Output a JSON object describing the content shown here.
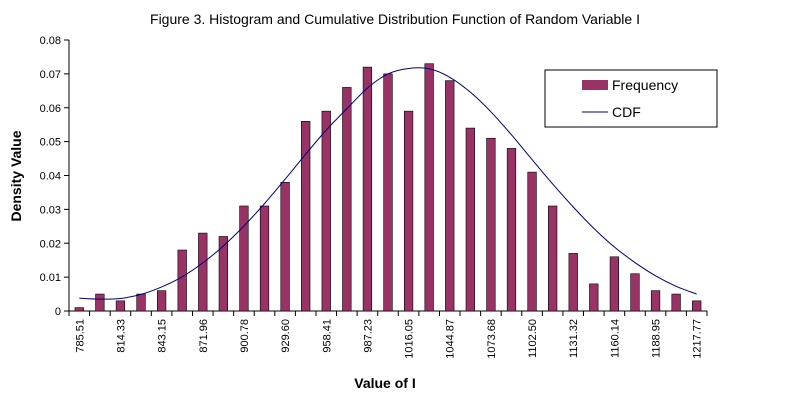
{
  "chart_data": {
    "type": "bar",
    "title": "Figure 3.  Histogram and Cumulative Distribution Function of Random Variable I",
    "xlabel": "Value of I",
    "ylabel": "Density Value",
    "ylim": [
      0,
      0.08
    ],
    "y_ticks": [
      "0",
      "0.01",
      "0.02",
      "0.03",
      "0.04",
      "0.05",
      "0.06",
      "0.07",
      "0.08"
    ],
    "x_tick_labels": [
      "785.51",
      "814.33",
      "843.15",
      "871.96",
      "900.78",
      "929.60",
      "958.41",
      "987.23",
      "1016.05",
      "1044.87",
      "1073.68",
      "1102.50",
      "1131.32",
      "1160.14",
      "1188.95",
      "1217.77"
    ],
    "grid": false,
    "legend_position": "top-right",
    "colors": {
      "bar": "#993366",
      "line": "#000080"
    },
    "series": [
      {
        "name": "Frequency",
        "type": "bar",
        "values": [
          0.001,
          0.005,
          0.003,
          0.005,
          0.006,
          0.018,
          0.023,
          0.022,
          0.031,
          0.031,
          0.038,
          0.056,
          0.059,
          0.066,
          0.072,
          0.07,
          0.059,
          0.073,
          0.068,
          0.054,
          0.051,
          0.048,
          0.041,
          0.031,
          0.017,
          0.008,
          0.016,
          0.011,
          0.006,
          0.005,
          0.003
        ]
      },
      {
        "name": "CDF",
        "type": "line",
        "values": [
          0.0038,
          0.0035,
          0.0037,
          0.0049,
          0.0071,
          0.0101,
          0.0142,
          0.0192,
          0.0251,
          0.0317,
          0.0389,
          0.0463,
          0.0534,
          0.0597,
          0.0658,
          0.07,
          0.0716,
          0.0715,
          0.069,
          0.0646,
          0.0588,
          0.052,
          0.0447,
          0.0375,
          0.0307,
          0.0244,
          0.0189,
          0.0143,
          0.0104,
          0.0073,
          0.005
        ]
      }
    ]
  }
}
